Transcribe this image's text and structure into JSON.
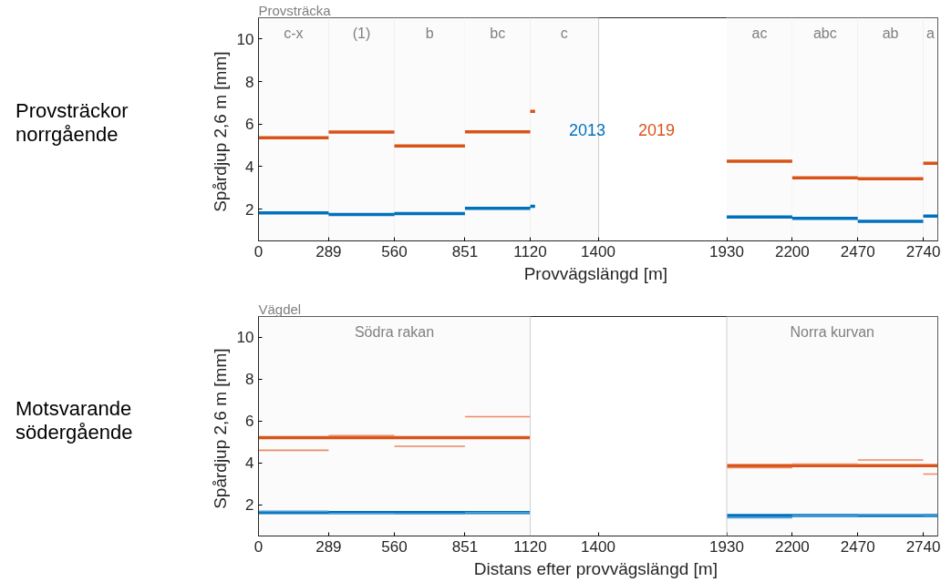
{
  "chart_data": [
    {
      "type": "line",
      "title": "Provsträckor norrgående",
      "xlabel": "Provvägslängd  [m]",
      "ylabel": "Spårdjup 2,6 m  [mm]",
      "subtitle": "Provsträcka",
      "xlim": [
        0,
        2800
      ],
      "ylim": [
        0.5,
        11
      ],
      "xticks": [
        0,
        289,
        560,
        851,
        1120,
        1400,
        1930,
        2200,
        2470,
        2740
      ],
      "yticks": [
        2,
        4,
        6,
        8,
        10
      ],
      "grid": "x",
      "legend": "center",
      "bands": [
        {
          "axis": "x",
          "from": 0,
          "to": 289,
          "label": "c-x",
          "color": "#fbfbfb"
        },
        {
          "axis": "x",
          "from": 289,
          "to": 560,
          "label": "(1)",
          "color": "#fbfbfb"
        },
        {
          "axis": "x",
          "from": 560,
          "to": 851,
          "label": "b",
          "color": "#fbfbfb"
        },
        {
          "axis": "x",
          "from": 851,
          "to": 1120,
          "label": "bc",
          "color": "#fbfbfb"
        },
        {
          "axis": "x",
          "from": 1120,
          "to": 1400,
          "label": "c",
          "color": "#fbfbfb"
        },
        {
          "axis": "x",
          "from": 1930,
          "to": 2200,
          "label": "ac",
          "color": "#fbfbfb"
        },
        {
          "axis": "x",
          "from": 2200,
          "to": 2470,
          "label": "abc",
          "color": "#fbfbfb"
        },
        {
          "axis": "x",
          "from": 2470,
          "to": 2740,
          "label": "ab",
          "color": "#fbfbfb"
        },
        {
          "axis": "x",
          "from": 2740,
          "to": 2800,
          "label": "a",
          "color": "#fbfbfb"
        }
      ],
      "series": [
        {
          "name": "2013",
          "color": "#0072bd",
          "x": [
            0,
            289,
            null,
            289,
            560,
            null,
            560,
            851,
            null,
            851,
            1120,
            null,
            1120,
            1140,
            null,
            1930,
            2200,
            null,
            2200,
            2470,
            null,
            2470,
            2740,
            null,
            2740,
            2800
          ],
          "values": [
            1.82,
            1.82,
            null,
            1.74,
            1.74,
            null,
            1.79,
            1.79,
            null,
            2.03,
            2.03,
            null,
            2.13,
            2.13,
            null,
            1.62,
            1.62,
            null,
            1.56,
            1.56,
            null,
            1.42,
            1.42,
            null,
            1.67,
            1.67
          ]
        },
        {
          "name": "2019",
          "color": "#d95319",
          "x": [
            0,
            289,
            null,
            289,
            560,
            null,
            560,
            851,
            null,
            851,
            1120,
            null,
            1120,
            1140,
            null,
            1930,
            2200,
            null,
            2200,
            2470,
            null,
            2470,
            2740,
            null,
            2740,
            2800
          ],
          "values": [
            5.35,
            5.35,
            null,
            5.62,
            5.62,
            null,
            4.97,
            4.97,
            null,
            5.63,
            5.63,
            null,
            6.6,
            6.6,
            null,
            4.25,
            4.25,
            null,
            3.47,
            3.47,
            null,
            3.43,
            3.43,
            null,
            4.15,
            4.15
          ]
        }
      ]
    },
    {
      "type": "line",
      "title": "Motsvarande södergående",
      "xlabel": "Distans efter provvägslängd  [m]",
      "ylabel": "Spårdjup 2,6 m  [mm]",
      "subtitle": "Vägdel",
      "xlim": [
        0,
        2800
      ],
      "ylim": [
        0.5,
        11
      ],
      "xticks": [
        0,
        289,
        560,
        851,
        1120,
        1400,
        1930,
        2200,
        2470,
        2740
      ],
      "yticks": [
        2,
        4,
        6,
        8,
        10
      ],
      "ref_lines": [
        {
          "axis": "x",
          "value": 1120,
          "color": "#d0d0d0"
        },
        {
          "axis": "x",
          "value": 1930,
          "color": "#d0d0d0"
        }
      ],
      "bands": [
        {
          "axis": "x",
          "from": 0,
          "to": 1120,
          "label": "Södra rakan",
          "color": "#fbfbfb"
        },
        {
          "axis": "x",
          "from": 1930,
          "to": 2800,
          "label": "Norra kurvan",
          "color": "#fbfbfb"
        }
      ],
      "series": [
        {
          "color": "#0072bd",
          "x": [
            0,
            1120,
            null,
            1930,
            2800
          ],
          "values": [
            1.62,
            1.62,
            null,
            1.48,
            1.48
          ]
        },
        {
          "color": "#d95319",
          "x": [
            0,
            1120,
            null,
            1930,
            2800
          ],
          "values": [
            5.21,
            5.21,
            null,
            3.87,
            3.87
          ]
        },
        {
          "color": "#4d9fd6",
          "x": [
            0,
            289,
            null,
            289,
            560,
            null,
            560,
            851,
            null,
            851,
            1120,
            null,
            1930,
            2200,
            null,
            2200,
            2470,
            null,
            2470,
            2740,
            null,
            2740,
            2800
          ],
          "values": [
            1.68,
            1.68,
            null,
            1.58,
            1.58,
            null,
            1.57,
            1.57,
            null,
            1.62,
            1.62,
            null,
            1.37,
            1.37,
            null,
            1.47,
            1.47,
            null,
            1.52,
            1.52,
            null,
            1.49,
            1.49
          ]
        },
        {
          "color": "#ec8a63",
          "x": [
            0,
            289,
            null,
            289,
            560,
            null,
            560,
            851,
            null,
            851,
            1120,
            null,
            1930,
            2200,
            null,
            2200,
            2470,
            null,
            2470,
            2740,
            null,
            2740,
            2800
          ],
          "values": [
            4.6,
            4.6,
            null,
            5.3,
            5.3,
            null,
            4.79,
            4.79,
            null,
            6.21,
            6.21,
            null,
            3.77,
            3.77,
            null,
            3.94,
            3.94,
            null,
            4.14,
            4.14,
            null,
            3.46,
            3.46
          ]
        }
      ]
    }
  ]
}
